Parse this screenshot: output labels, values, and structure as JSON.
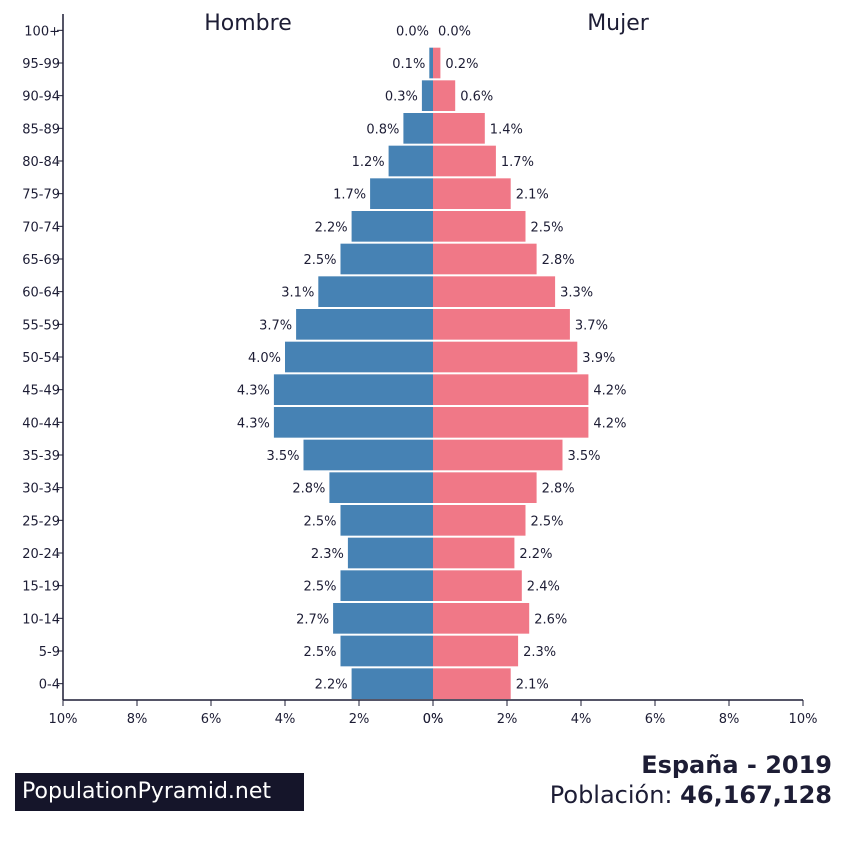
{
  "chart_data": {
    "type": "bar",
    "orientation": "horizontal-population-pyramid",
    "categories": [
      "0-4",
      "5-9",
      "10-14",
      "15-19",
      "20-24",
      "25-29",
      "30-34",
      "35-39",
      "40-44",
      "45-49",
      "50-54",
      "55-59",
      "60-64",
      "65-69",
      "70-74",
      "75-79",
      "80-84",
      "85-89",
      "90-94",
      "95-99",
      "100+"
    ],
    "series": [
      {
        "name": "Hombre",
        "color": "#4682b4",
        "values": [
          2.2,
          2.5,
          2.7,
          2.5,
          2.3,
          2.5,
          2.8,
          3.5,
          4.3,
          4.3,
          4.0,
          3.7,
          3.1,
          2.5,
          2.2,
          1.7,
          1.2,
          0.8,
          0.3,
          0.1,
          0.0
        ],
        "labels": [
          "2.2%",
          "2.5%",
          "2.7%",
          "2.5%",
          "2.3%",
          "2.5%",
          "2.8%",
          "3.5%",
          "4.3%",
          "4.3%",
          "4.0%",
          "3.7%",
          "3.1%",
          "2.5%",
          "2.2%",
          "1.7%",
          "1.2%",
          "0.8%",
          "0.3%",
          "0.1%",
          "0.0%"
        ]
      },
      {
        "name": "Mujer",
        "color": "#f07887",
        "values": [
          2.1,
          2.3,
          2.6,
          2.4,
          2.2,
          2.5,
          2.8,
          3.5,
          4.2,
          4.2,
          3.9,
          3.7,
          3.3,
          2.8,
          2.5,
          2.1,
          1.7,
          1.4,
          0.6,
          0.2,
          0.0
        ],
        "labels": [
          "2.1%",
          "2.3%",
          "2.6%",
          "2.4%",
          "2.2%",
          "2.5%",
          "2.8%",
          "3.5%",
          "4.2%",
          "4.2%",
          "3.9%",
          "3.7%",
          "3.3%",
          "2.8%",
          "2.5%",
          "2.1%",
          "1.7%",
          "1.4%",
          "0.6%",
          "0.2%",
          "0.0%"
        ]
      }
    ],
    "xlim": [
      -10,
      10
    ],
    "xticks": [
      "10%",
      "8%",
      "6%",
      "4%",
      "2%",
      "0%",
      "0%",
      "2%",
      "4%",
      "6%",
      "8%",
      "10%"
    ],
    "grid": false,
    "legend": "top"
  },
  "branding": {
    "site": "PopulationPyramid.net"
  },
  "summary": {
    "country_year": "España - 2019",
    "population_label": "Población:",
    "population_value": "46,167,128"
  }
}
